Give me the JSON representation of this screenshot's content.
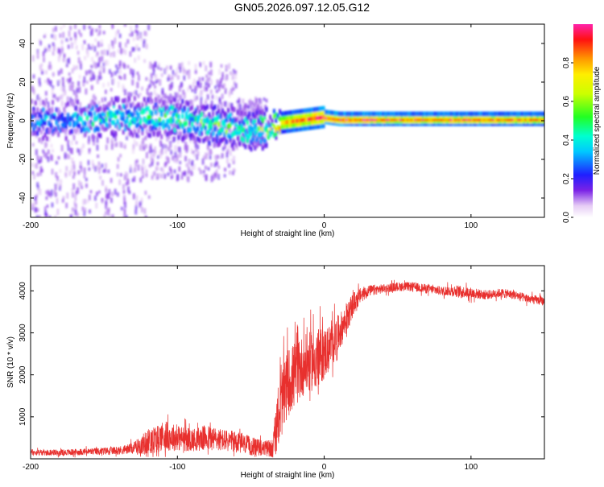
{
  "title": "GN05.2026.097.12.05.G12",
  "chart_data": [
    {
      "type": "heatmap",
      "xlabel": "Height of straight line (km)",
      "ylabel": "Frequency (Hz)",
      "xlim": [
        -200,
        150
      ],
      "ylim": [
        -50,
        50
      ],
      "xticks": [
        "-200",
        "-100",
        "0",
        "100"
      ],
      "xtick_values": [
        -200,
        -100,
        0,
        100
      ],
      "yticks": [
        "40",
        "20",
        "0",
        "-20",
        "-40"
      ],
      "ytick_values": [
        40,
        20,
        0,
        -20,
        -40
      ],
      "colorbar": {
        "label": "Normalized spectral amplitude",
        "ticks": [
          "0.0",
          "0.2",
          "0.4",
          "0.6",
          "0.8"
        ],
        "tick_values": [
          0.0,
          0.2,
          0.4,
          0.6,
          0.8
        ],
        "range": [
          0,
          1
        ]
      },
      "ridge": {
        "x": [
          -200,
          -180,
          -160,
          -140,
          -120,
          -100,
          -80,
          -60,
          -50,
          -40,
          -30,
          -20,
          -10,
          0,
          10,
          50,
          100,
          150
        ],
        "freq": [
          0,
          0,
          1,
          2,
          2,
          1,
          -2,
          -4,
          -6,
          -4,
          -1,
          0,
          1,
          2,
          1,
          1,
          1,
          1
        ],
        "amplitude": [
          0.35,
          0.35,
          0.4,
          0.45,
          0.5,
          0.5,
          0.55,
          0.5,
          0.5,
          0.6,
          0.75,
          0.85,
          0.9,
          0.95,
          0.95,
          0.9,
          0.9,
          0.85
        ]
      }
    },
    {
      "type": "line",
      "xlabel": "Height of straight line (km)",
      "ylabel": "SNR (10 * v/v)",
      "xlim": [
        -200,
        150
      ],
      "ylim": [
        0,
        4600
      ],
      "xticks": [
        "-200",
        "-100",
        "0",
        "100"
      ],
      "xtick_values": [
        -200,
        -100,
        0,
        100
      ],
      "yticks": [
        "4000",
        "3000",
        "2000",
        "1000"
      ],
      "ytick_values": [
        4000,
        3000,
        2000,
        1000
      ],
      "color": "#e8302e",
      "series": [
        {
          "name": "SNR",
          "x": [
            -200,
            -180,
            -160,
            -140,
            -130,
            -120,
            -110,
            -100,
            -90,
            -80,
            -70,
            -60,
            -50,
            -40,
            -35,
            -30,
            -25,
            -20,
            -15,
            -10,
            -5,
            0,
            5,
            10,
            15,
            20,
            25,
            30,
            40,
            50,
            60,
            70,
            80,
            90,
            100,
            110,
            120,
            130,
            140,
            150
          ],
          "y": [
            150,
            150,
            170,
            200,
            250,
            400,
            550,
            500,
            450,
            500,
            450,
            400,
            300,
            250,
            250,
            1200,
            1800,
            2000,
            2200,
            2300,
            2400,
            2500,
            2700,
            3000,
            3300,
            3700,
            3900,
            4000,
            4050,
            4100,
            4100,
            4050,
            4000,
            4000,
            3950,
            3900,
            3950,
            3900,
            3800,
            3750
          ],
          "noise": [
            80,
            80,
            90,
            110,
            150,
            350,
            400,
            350,
            300,
            350,
            300,
            280,
            250,
            200,
            300,
            900,
            900,
            900,
            800,
            800,
            800,
            700,
            600,
            500,
            400,
            300,
            200,
            150,
            120,
            120,
            120,
            120,
            120,
            150,
            150,
            120,
            120,
            120,
            120,
            120
          ]
        }
      ]
    }
  ]
}
